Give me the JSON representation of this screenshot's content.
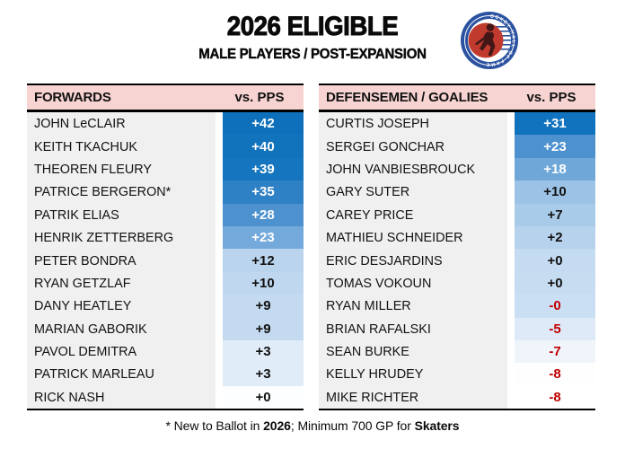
{
  "header": {
    "title": "2026 ELIGIBLE",
    "subtitle": "MALE PLAYERS / POST-EXPANSION",
    "logo_name": "hockey-hall-of-fame-logo",
    "logo_ring_text": "HOCKEY HALL OF FAME"
  },
  "colors": {
    "header_band_pink": "#F7D4D2",
    "name_cell_gray": "#F0F0F0",
    "negative_text_red": "#C00000",
    "positive_text_white": "#FFFFFF",
    "table_border_black": "#000000",
    "scale_dark_blue": "#0E70BA",
    "scale_white": "#FFFFFF",
    "logo_ring_blue": "#2A52A0",
    "logo_disc_red": "#C13A2E",
    "logo_player_dark": "#431718"
  },
  "tables": [
    {
      "header": {
        "label": "FORWARDS",
        "value_label": "vs. PPS"
      },
      "rows": [
        {
          "name": "JOHN LeCLAIR",
          "value": "+42",
          "bg": "#0E70BA",
          "fg": "#FFFFFF"
        },
        {
          "name": "KEITH TKACHUK",
          "value": "+40",
          "bg": "#1273BD",
          "fg": "#FFFFFF"
        },
        {
          "name": "THEOREN FLEURY",
          "value": "+39",
          "bg": "#1575BE",
          "fg": "#FFFFFF"
        },
        {
          "name": "PATRICE BERGERON*",
          "value": "+35",
          "bg": "#2F81C5",
          "fg": "#FFFFFF"
        },
        {
          "name": "PATRIK ELIAS",
          "value": "+28",
          "bg": "#4D91CE",
          "fg": "#FFFFFF"
        },
        {
          "name": "HENRIK ZETTERBERG",
          "value": "+23",
          "bg": "#74AADB",
          "fg": "#FFFFFF"
        },
        {
          "name": "PETER BONDRA",
          "value": "+12",
          "bg": "#BAD4ED",
          "fg": "#111111"
        },
        {
          "name": "RYAN GETZLAF",
          "value": "+10",
          "bg": "#BFD8EF",
          "fg": "#111111"
        },
        {
          "name": "DANY HEATLEY",
          "value": "+9",
          "bg": "#C3DAF0",
          "fg": "#111111"
        },
        {
          "name": "MARIAN GABORIK",
          "value": "+9",
          "bg": "#C3DAF0",
          "fg": "#111111"
        },
        {
          "name": "PAVOL DEMITRA",
          "value": "+3",
          "bg": "#E0ECF8",
          "fg": "#111111"
        },
        {
          "name": "PATRICK MARLEAU",
          "value": "+3",
          "bg": "#E0ECF8",
          "fg": "#111111"
        },
        {
          "name": "RICK NASH",
          "value": "+0",
          "bg": "#FDFEFF",
          "fg": "#111111"
        }
      ]
    },
    {
      "header": {
        "label": "DEFENSEMEN / GOALIES",
        "value_label": "vs. PPS"
      },
      "rows": [
        {
          "name": "CURTIS JOSEPH",
          "value": "+31",
          "bg": "#1173BD",
          "fg": "#FFFFFF"
        },
        {
          "name": "SERGEI GONCHAR",
          "value": "+23",
          "bg": "#4D91CE",
          "fg": "#FFFFFF"
        },
        {
          "name": "JOHN VANBIESBROUCK",
          "value": "+18",
          "bg": "#6FA7D9",
          "fg": "#FFFFFF"
        },
        {
          "name": "GARY SUTER",
          "value": "+10",
          "bg": "#9CC2E5",
          "fg": "#111111"
        },
        {
          "name": "CAREY PRICE",
          "value": "+7",
          "bg": "#A8CBE9",
          "fg": "#111111"
        },
        {
          "name": "MATHIEU SCHNEIDER",
          "value": "+2",
          "bg": "#B6D2EC",
          "fg": "#111111"
        },
        {
          "name": "ERIC DESJARDINS",
          "value": "+0",
          "bg": "#C4DBF1",
          "fg": "#111111"
        },
        {
          "name": "TOMAS VOKOUN",
          "value": "+0",
          "bg": "#C6DCF1",
          "fg": "#111111"
        },
        {
          "name": "RYAN MILLER",
          "value": "-0",
          "bg": "#CADFF3",
          "fg": "#C00000"
        },
        {
          "name": "BRIAN RAFALSKI",
          "value": "-5",
          "bg": "#DEEAF7",
          "fg": "#C00000"
        },
        {
          "name": "SEAN BURKE",
          "value": "-7",
          "bg": "#EFF5FB",
          "fg": "#C00000"
        },
        {
          "name": "KELLY HRUDEY",
          "value": "-8",
          "bg": "#FEFEFF",
          "fg": "#C00000"
        },
        {
          "name": "MIKE RICHTER",
          "value": "-8",
          "bg": "#FFFFFF",
          "fg": "#C00000"
        }
      ]
    }
  ],
  "footer": {
    "segments": [
      {
        "text": "* New to Ballot in ",
        "bold": false
      },
      {
        "text": "2026",
        "bold": true
      },
      {
        "text": "; Minimum 700 GP for ",
        "bold": false
      },
      {
        "text": "Skaters",
        "bold": true
      }
    ]
  },
  "chart_data": {
    "type": "table",
    "title": "2026 ELIGIBLE",
    "subtitle": "MALE PLAYERS / POST-EXPANSION",
    "note": "* New to Ballot in 2026; Minimum 700 GP for Skaters",
    "value_column": "vs. PPS",
    "color_scale": "conditional blue-to-white fill by value; negative values shown in dark red text",
    "tables": [
      {
        "name": "FORWARDS",
        "categories": [
          "JOHN LeCLAIR",
          "KEITH TKACHUK",
          "THEOREN FLEURY",
          "PATRICE BERGERON*",
          "PATRIK ELIAS",
          "HENRIK ZETTERBERG",
          "PETER BONDRA",
          "RYAN GETZLAF",
          "DANY HEATLEY",
          "MARIAN GABORIK",
          "PAVOL DEMITRA",
          "PATRICK MARLEAU",
          "RICK NASH"
        ],
        "values": [
          42,
          40,
          39,
          35,
          28,
          23,
          12,
          10,
          9,
          9,
          3,
          3,
          0
        ],
        "display_values": [
          "+42",
          "+40",
          "+39",
          "+35",
          "+28",
          "+23",
          "+12",
          "+10",
          "+9",
          "+9",
          "+3",
          "+3",
          "+0"
        ]
      },
      {
        "name": "DEFENSEMEN / GOALIES",
        "categories": [
          "CURTIS JOSEPH",
          "SERGEI GONCHAR",
          "JOHN VANBIESBROUCK",
          "GARY SUTER",
          "CAREY PRICE",
          "MATHIEU SCHNEIDER",
          "ERIC DESJARDINS",
          "TOMAS VOKOUN",
          "RYAN MILLER",
          "BRIAN RAFALSKI",
          "SEAN BURKE",
          "KELLY HRUDEY",
          "MIKE RICHTER"
        ],
        "values": [
          31,
          23,
          18,
          10,
          7,
          2,
          0,
          0,
          0,
          -5,
          -7,
          -8,
          -8
        ],
        "display_values": [
          "+31",
          "+23",
          "+18",
          "+10",
          "+7",
          "+2",
          "+0",
          "+0",
          "-0",
          "-5",
          "-7",
          "-8",
          "-8"
        ]
      }
    ]
  }
}
